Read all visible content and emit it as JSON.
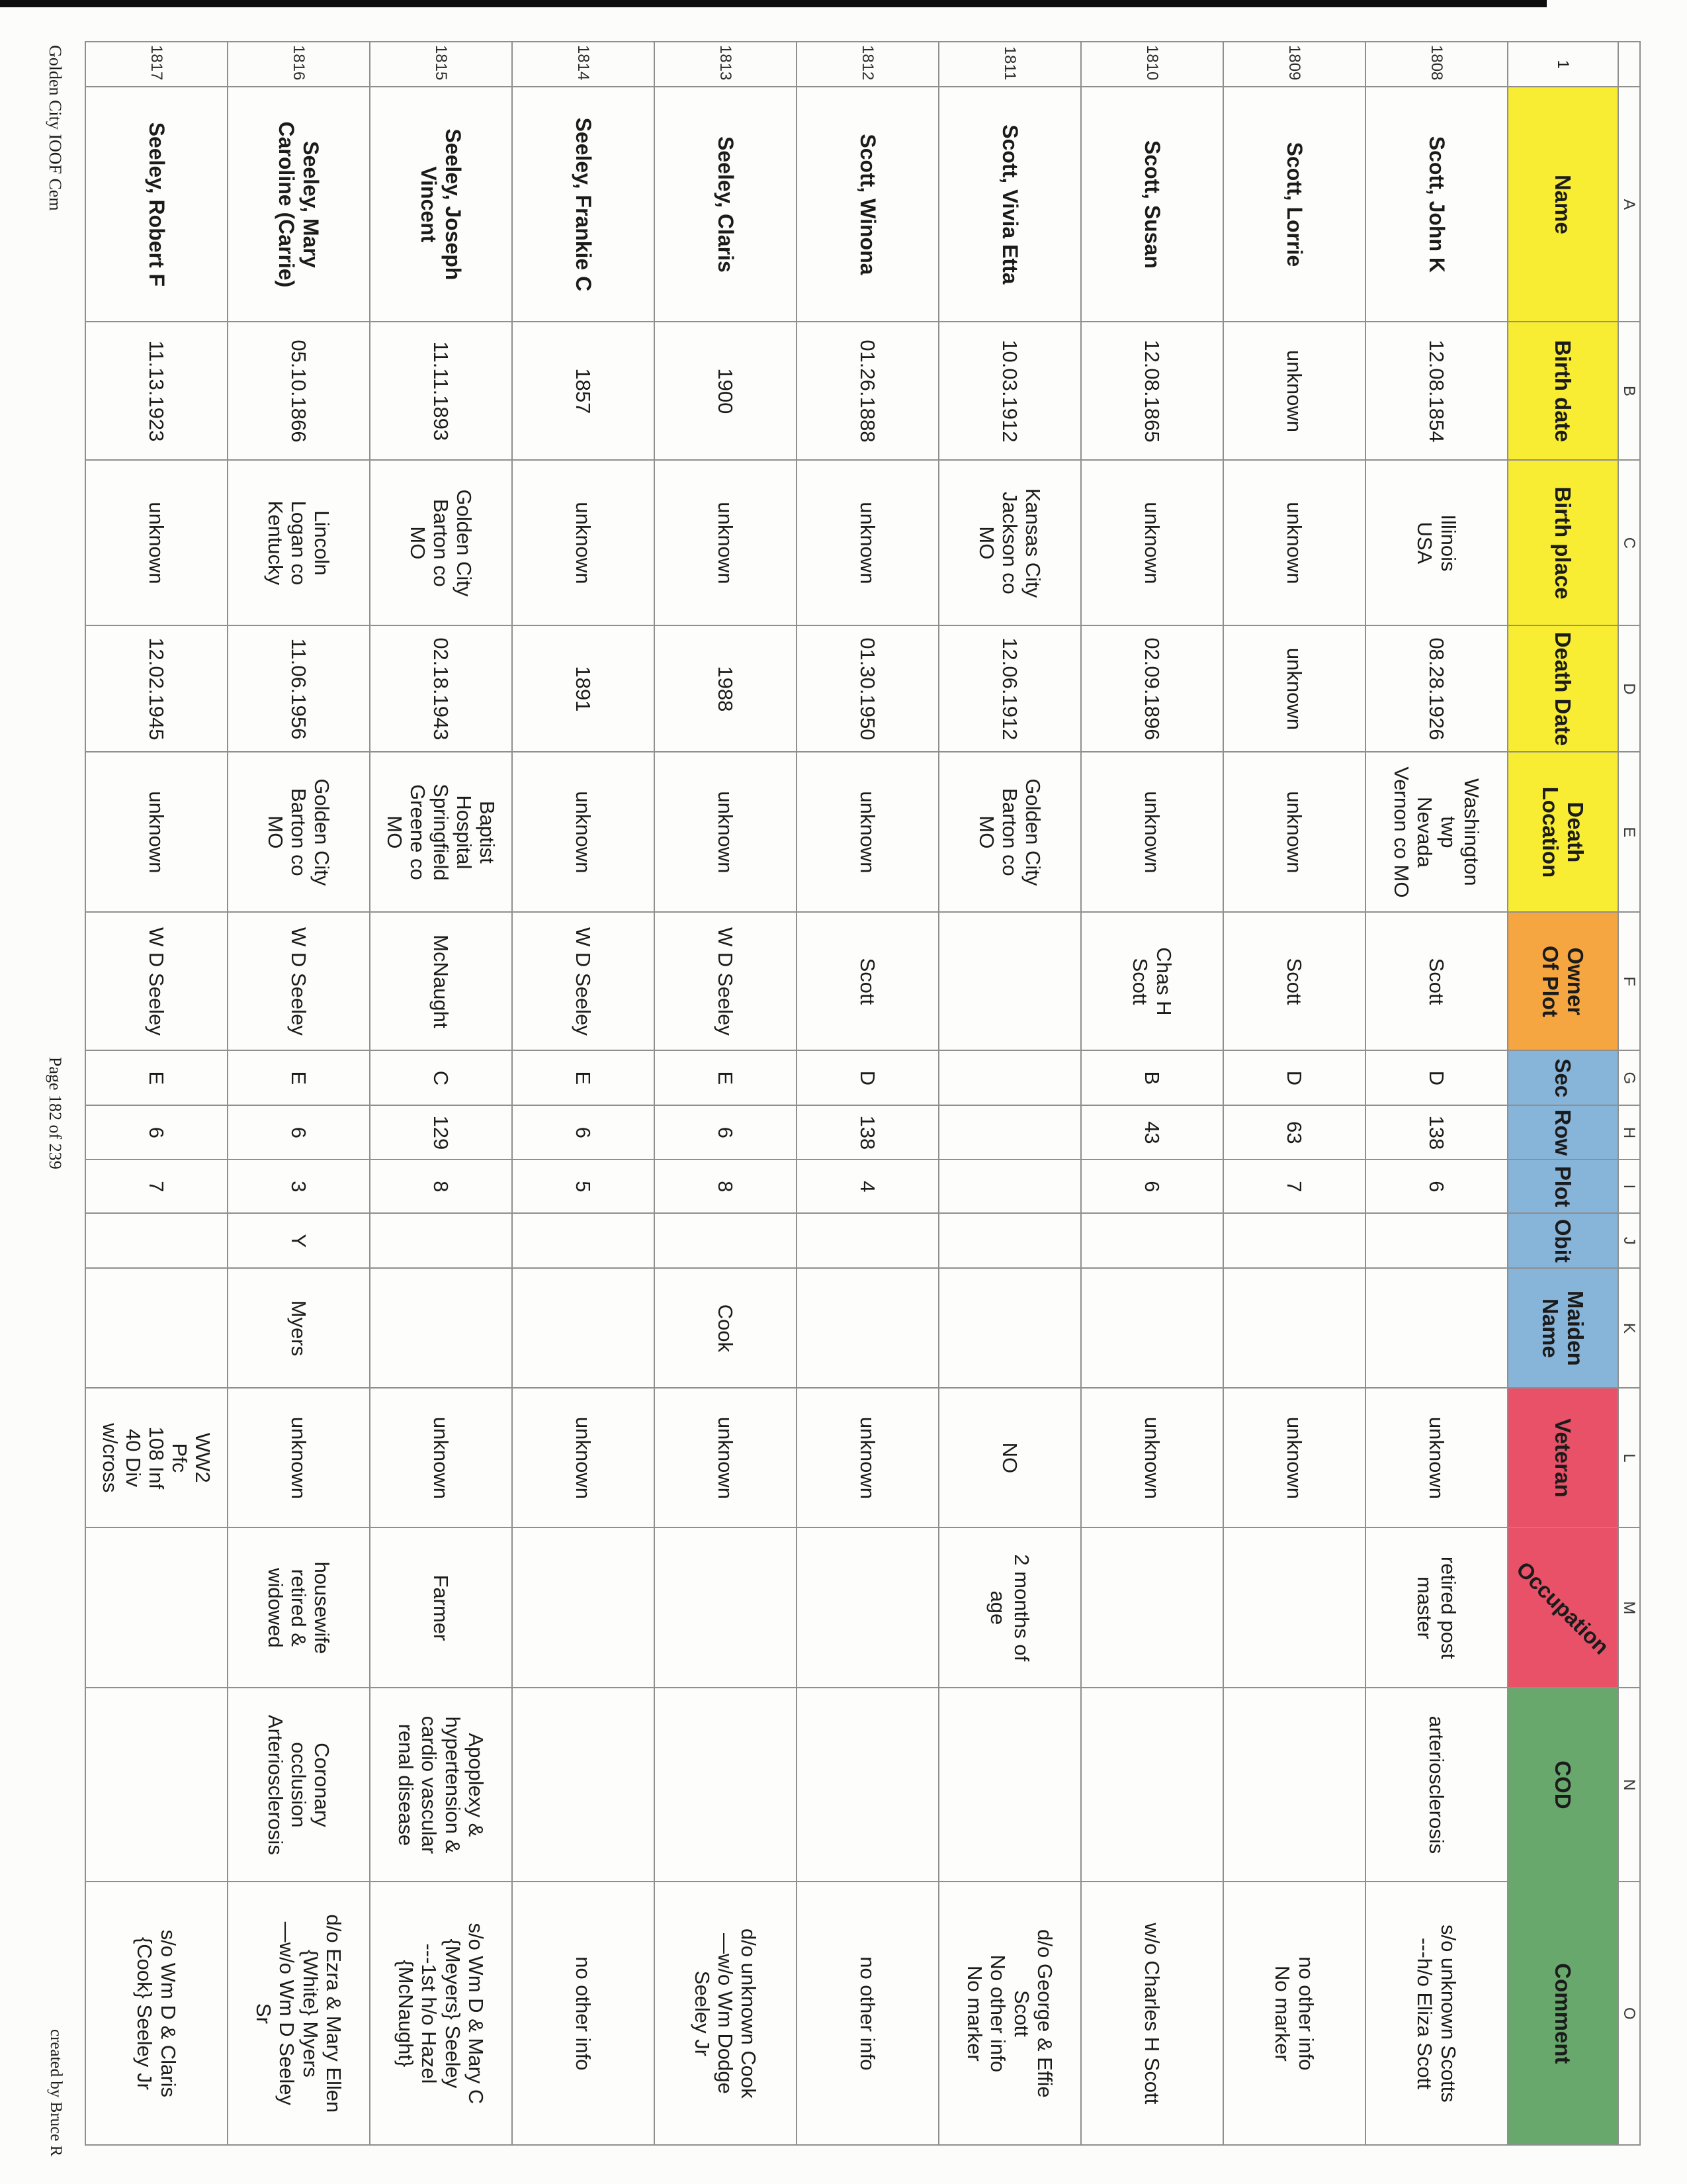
{
  "page": {
    "footer_left": "Golden City IOOF Cem",
    "footer_center": "Page 182 of 239",
    "footer_right": "created by Bruce R"
  },
  "colors": {
    "header_yellow": "#f8ed33",
    "header_orange": "#f6a640",
    "header_blue": "#87b4d9",
    "header_red": "#e85168",
    "header_green": "#69a86d",
    "grid_line": "#8f8f8f"
  },
  "sheet": {
    "corner_row_label": "1",
    "column_letters": [
      "A",
      "B",
      "C",
      "D",
      "E",
      "F",
      "G",
      "H",
      "I",
      "J",
      "K",
      "L",
      "M",
      "N",
      "O"
    ],
    "headers": [
      {
        "key": "name",
        "label": "Name"
      },
      {
        "key": "birth_date",
        "label": "Birth date"
      },
      {
        "key": "birth_place",
        "label": "Birth place"
      },
      {
        "key": "death_date",
        "label": "Death Date"
      },
      {
        "key": "death_location",
        "label": "Death\nLocation"
      },
      {
        "key": "owner",
        "label": "Owner\nOf Plot"
      },
      {
        "key": "sec",
        "label": "Sec"
      },
      {
        "key": "row",
        "label": "Row"
      },
      {
        "key": "plot",
        "label": "Plot"
      },
      {
        "key": "obit",
        "label": "Obit"
      },
      {
        "key": "maiden_name",
        "label": "Maiden\nName"
      },
      {
        "key": "veteran",
        "label": "Veteran"
      },
      {
        "key": "occupation",
        "label": "Occupation"
      },
      {
        "key": "cod",
        "label": "COD"
      },
      {
        "key": "comment",
        "label": "Comment"
      }
    ],
    "fields": [
      "name",
      "birth_date",
      "birth_place",
      "death_date",
      "death_location",
      "owner",
      "sec",
      "row",
      "plot",
      "obit",
      "maiden_name",
      "veteran",
      "occupation",
      "cod",
      "comment"
    ],
    "rows": [
      {
        "num": "1808",
        "name": "Scott, John K",
        "birth_date": "12.08.1854",
        "birth_place": "Illinois\nUSA",
        "death_date": "08.28.1926",
        "death_location": "Washington\ntwp\nNevada\nVernon co MO",
        "owner": "Scott",
        "sec": "D",
        "row": "138",
        "plot": "6",
        "obit": "",
        "maiden_name": "",
        "veteran": "unknown",
        "occupation": "retired post\nmaster",
        "cod": "arteriosclerosis",
        "comment": "s/o unknown Scotts\n---h/o Eliza Scott"
      },
      {
        "num": "1809",
        "name": "Scott, Lorrie",
        "birth_date": "unknown",
        "birth_place": "unknown",
        "death_date": "unknown",
        "death_location": "unknown",
        "owner": "Scott",
        "sec": "D",
        "row": "63",
        "plot": "7",
        "obit": "",
        "maiden_name": "",
        "veteran": "unknown",
        "occupation": "",
        "cod": "",
        "comment": "no other info\nNo marker"
      },
      {
        "num": "1810",
        "name": "Scott, Susan",
        "birth_date": "12.08.1865",
        "birth_place": "unknown",
        "death_date": "02.09.1896",
        "death_location": "unknown",
        "owner": "Chas H\nScott",
        "sec": "B",
        "row": "43",
        "plot": "6",
        "obit": "",
        "maiden_name": "",
        "veteran": "unknown",
        "occupation": "",
        "cod": "",
        "comment": "w/o Charles H Scott"
      },
      {
        "num": "1811",
        "name": "Scott, Vivia Etta",
        "birth_date": "10.03.1912",
        "birth_place": "Kansas City\nJackson co\nMO",
        "death_date": "12.06.1912",
        "death_location": "Golden City\nBarton co\nMO",
        "owner": "",
        "sec": "",
        "row": "",
        "plot": "",
        "obit": "",
        "maiden_name": "",
        "veteran": "NO",
        "occupation": "2 months of\nage",
        "cod": "",
        "comment": "d/o George & Effie\nScott\nNo other info\nNo marker"
      },
      {
        "num": "1812",
        "name": "Scott, Winona",
        "birth_date": "01.26.1888",
        "birth_place": "unknown",
        "death_date": "01.30.1950",
        "death_location": "unknown",
        "owner": "Scott",
        "sec": "D",
        "row": "138",
        "plot": "4",
        "obit": "",
        "maiden_name": "",
        "veteran": "unknown",
        "occupation": "",
        "cod": "",
        "comment": "no other info"
      },
      {
        "num": "1813",
        "name": "Seeley, Claris",
        "birth_date": "1900",
        "birth_place": "unknown",
        "death_date": "1988",
        "death_location": "unknown",
        "owner": "W D Seeley",
        "sec": "E",
        "row": "6",
        "plot": "8",
        "obit": "",
        "maiden_name": "Cook",
        "veteran": "unknown",
        "occupation": "",
        "cod": "",
        "comment": "d/o unknown Cook\n—w/o Wm Dodge\nSeeley Jr"
      },
      {
        "num": "1814",
        "name": "Seeley, Frankie C",
        "birth_date": "1857",
        "birth_place": "unknown",
        "death_date": "1891",
        "death_location": "unknown",
        "owner": "W D Seeley",
        "sec": "E",
        "row": "6",
        "plot": "5",
        "obit": "",
        "maiden_name": "",
        "veteran": "unknown",
        "occupation": "",
        "cod": "",
        "comment": "no other info"
      },
      {
        "num": "1815",
        "name": "Seeley, Joseph\nVincent",
        "birth_date": "11.11.1893",
        "birth_place": "Golden City\nBarton co\nMO",
        "death_date": "02.18.1943",
        "death_location": "Baptist\nHospital\nSpringfield\nGreene co\nMO",
        "owner": "McNaught",
        "sec": "C",
        "row": "129",
        "plot": "8",
        "obit": "",
        "maiden_name": "",
        "veteran": "unknown",
        "occupation": "Farmer",
        "cod": "Apoplexy &\nhypertension &\ncardio vascular\nrenal disease",
        "comment": "s/o Wm D & Mary C\n{Meyers} Seeley\n---1st h/o Hazel\n{McNaught}"
      },
      {
        "num": "1816",
        "name": "Seeley, Mary\nCaroline (Carrie)",
        "birth_date": "05.10.1866",
        "birth_place": "Lincoln\nLogan co\nKentucky",
        "death_date": "11.06.1956",
        "death_location": "Golden City\nBarton co\nMO",
        "owner": "W D Seeley",
        "sec": "E",
        "row": "6",
        "plot": "3",
        "obit": "Y",
        "maiden_name": "Myers",
        "veteran": "unknown",
        "occupation": "housewife\nretired &\nwidowed",
        "cod": "Coronary\nocclusion\nArteriosclerosis",
        "comment": "d/o Ezra & Mary Ellen\n{White} Myers\n—w/o Wm D Seeley\nSr"
      },
      {
        "num": "1817",
        "name": "Seeley, Robert F",
        "birth_date": "11.13.1923",
        "birth_place": "unknown",
        "death_date": "12.02.1945",
        "death_location": "unknown",
        "owner": "W D Seeley",
        "sec": "E",
        "row": "6",
        "plot": "7",
        "obit": "",
        "maiden_name": "",
        "veteran": "WW2\nPfc\n108 Inf\n40 Div\nw/cross",
        "occupation": "",
        "cod": "",
        "comment": "s/o Wm D & Claris\n{Cook} Seeley Jr"
      }
    ]
  }
}
